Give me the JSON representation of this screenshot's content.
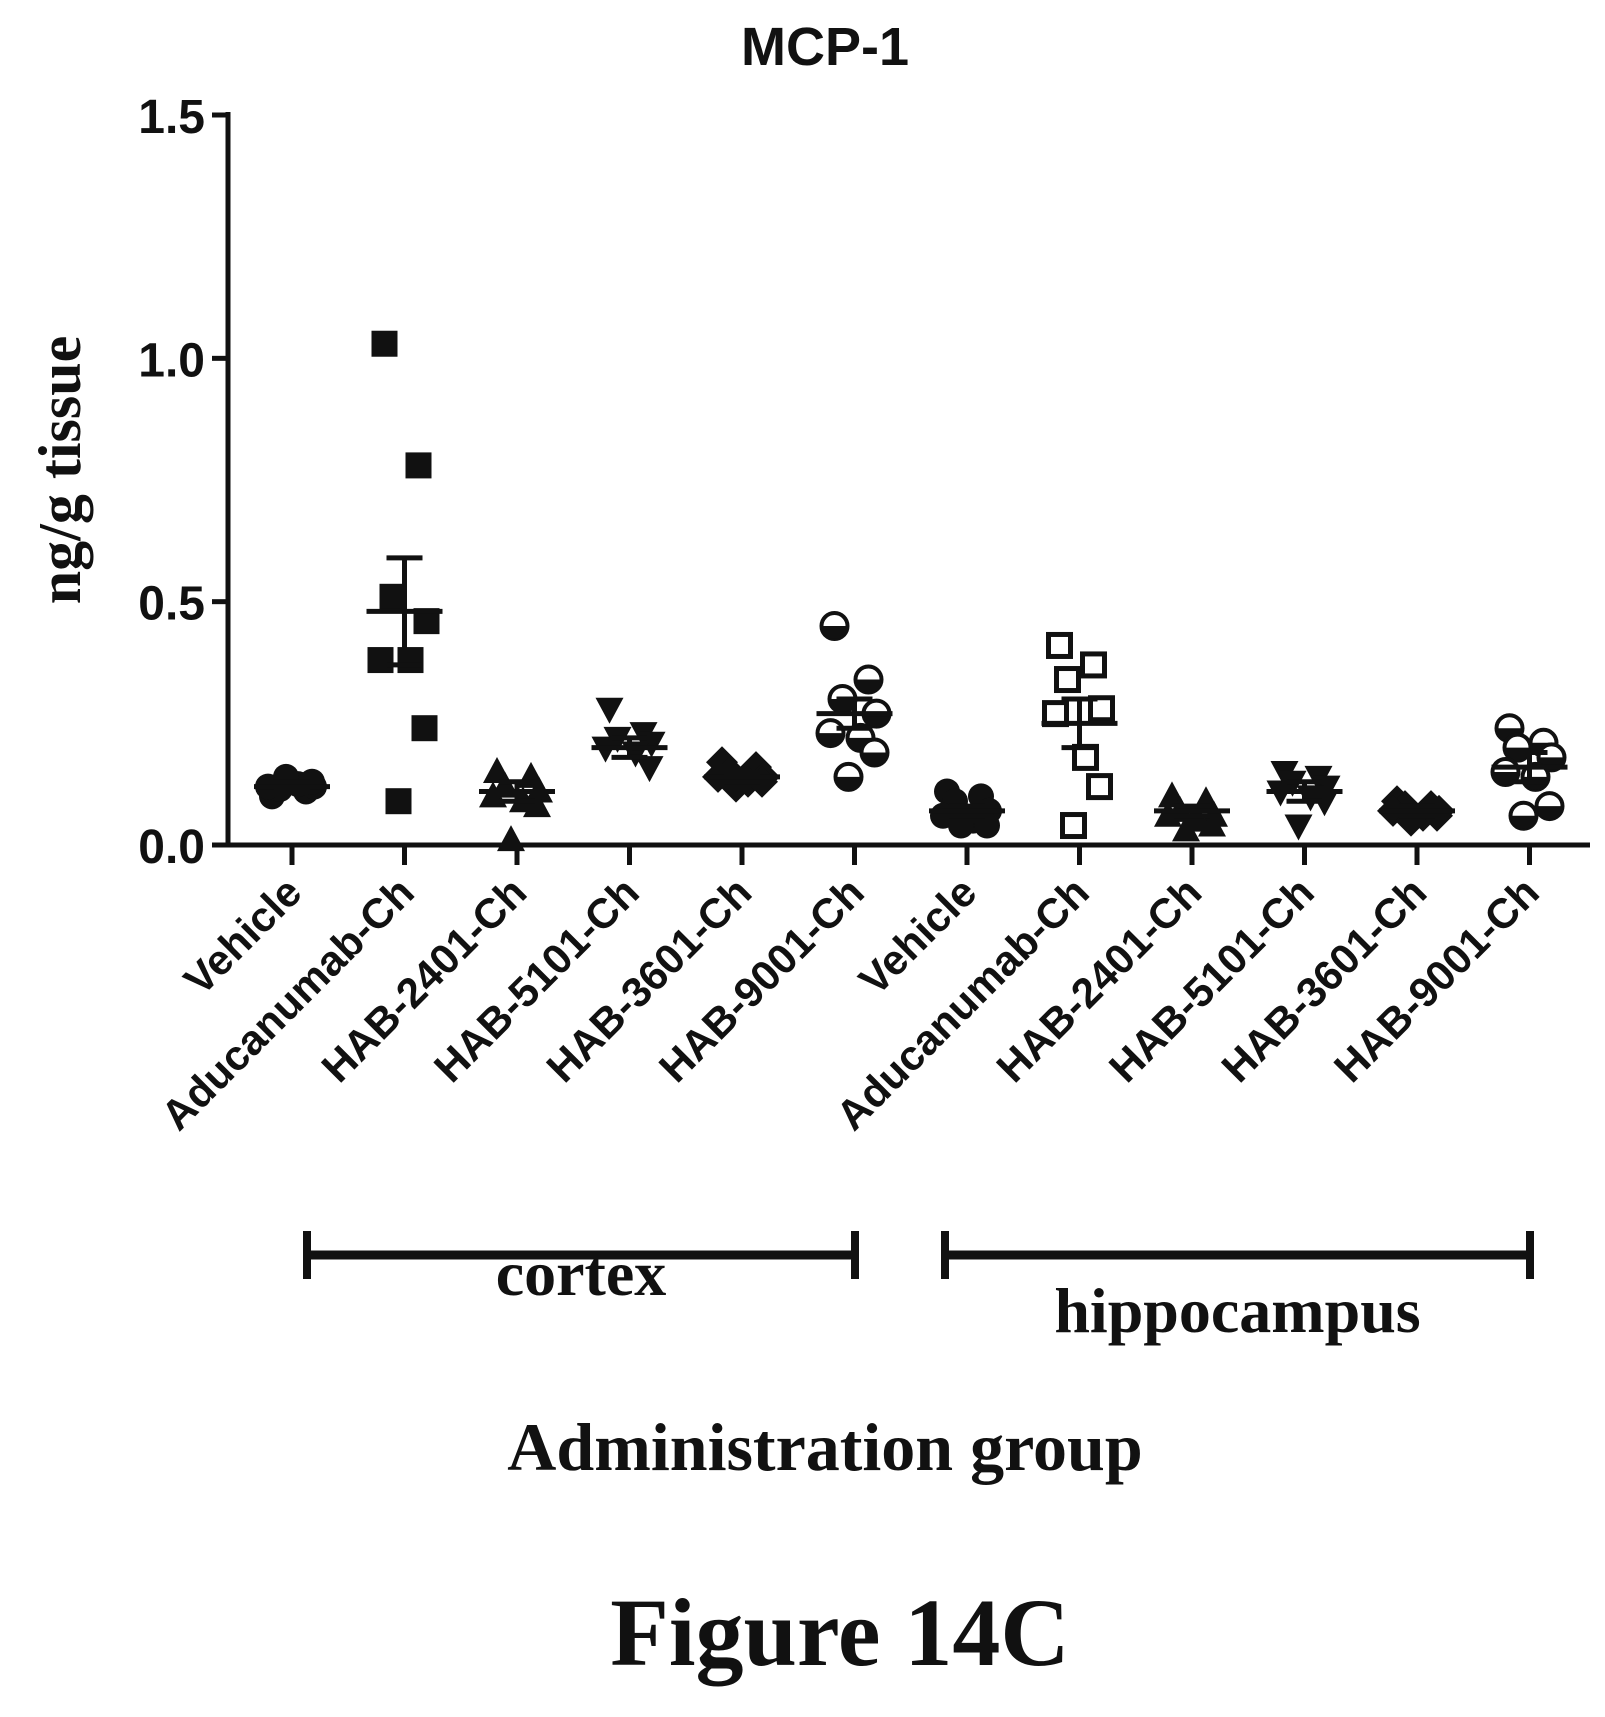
{
  "figure_label": "Figure 14C",
  "chart_data": {
    "type": "scatter",
    "title": "MCP-1",
    "ylabel": "ng/g tissue",
    "xlabel": "Administration group",
    "ylim": [
      0,
      1.5
    ],
    "yticks": [
      "0.0",
      "0.5",
      "1.0",
      "1.5"
    ],
    "grid": false,
    "categories": [
      "Vehicle",
      "Aducanumab-Ch",
      "HAB-2401-Ch",
      "HAB-5101-Ch",
      "HAB-3601-Ch",
      "HAB-9001-Ch",
      "Vehicle",
      "Aducanumab-Ch",
      "HAB-2401-Ch",
      "HAB-5101-Ch",
      "HAB-3601-Ch",
      "HAB-9001-Ch"
    ],
    "region_groups": [
      {
        "label": "cortex",
        "category_range": [
          0,
          5
        ]
      },
      {
        "label": "hippocampus",
        "category_range": [
          6,
          11
        ]
      }
    ],
    "series": [
      {
        "marker": "circle-filled",
        "mean": 0.12,
        "sem": 0.01,
        "values": [
          0.1,
          0.11,
          0.115,
          0.12,
          0.12,
          0.125,
          0.13,
          0.14
        ]
      },
      {
        "marker": "square-filled",
        "mean": 0.48,
        "sem": 0.11,
        "values": [
          1.03,
          0.78,
          0.51,
          0.46,
          0.38,
          0.38,
          0.24,
          0.09
        ]
      },
      {
        "marker": "triangle-up-filled",
        "mean": 0.11,
        "sem": 0.02,
        "values": [
          0.15,
          0.14,
          0.12,
          0.11,
          0.1,
          0.09,
          0.08,
          0.01
        ]
      },
      {
        "marker": "triangle-down-filled",
        "mean": 0.2,
        "sem": 0.02,
        "values": [
          0.28,
          0.23,
          0.22,
          0.21,
          0.2,
          0.19,
          0.16
        ]
      },
      {
        "marker": "diamond-filled",
        "mean": 0.14,
        "sem": 0.01,
        "values": [
          0.17,
          0.16,
          0.15,
          0.14,
          0.14,
          0.13,
          0.13,
          0.12
        ]
      },
      {
        "marker": "circle-half",
        "mean": 0.27,
        "sem": 0.03,
        "values": [
          0.45,
          0.34,
          0.3,
          0.27,
          0.23,
          0.22,
          0.19,
          0.14
        ]
      },
      {
        "marker": "circle-filled",
        "mean": 0.07,
        "sem": 0.01,
        "values": [
          0.11,
          0.1,
          0.09,
          0.07,
          0.06,
          0.05,
          0.04,
          0.04
        ]
      },
      {
        "marker": "square-open",
        "mean": 0.25,
        "sem": 0.05,
        "values": [
          0.41,
          0.37,
          0.34,
          0.28,
          0.27,
          0.18,
          0.12,
          0.04
        ]
      },
      {
        "marker": "triangle-up-filled",
        "mean": 0.07,
        "sem": 0.01,
        "values": [
          0.1,
          0.09,
          0.07,
          0.06,
          0.06,
          0.05,
          0.04,
          0.03
        ]
      },
      {
        "marker": "triangle-down-filled",
        "mean": 0.11,
        "sem": 0.02,
        "values": [
          0.15,
          0.14,
          0.13,
          0.12,
          0.11,
          0.1,
          0.09,
          0.04
        ]
      },
      {
        "marker": "diamond-filled",
        "mean": 0.07,
        "sem": 0.01,
        "values": [
          0.09,
          0.08,
          0.08,
          0.07,
          0.07,
          0.06,
          0.06,
          0.05
        ]
      },
      {
        "marker": "circle-half",
        "mean": 0.16,
        "sem": 0.03,
        "values": [
          0.24,
          0.21,
          0.2,
          0.18,
          0.15,
          0.14,
          0.08,
          0.06
        ]
      }
    ]
  }
}
